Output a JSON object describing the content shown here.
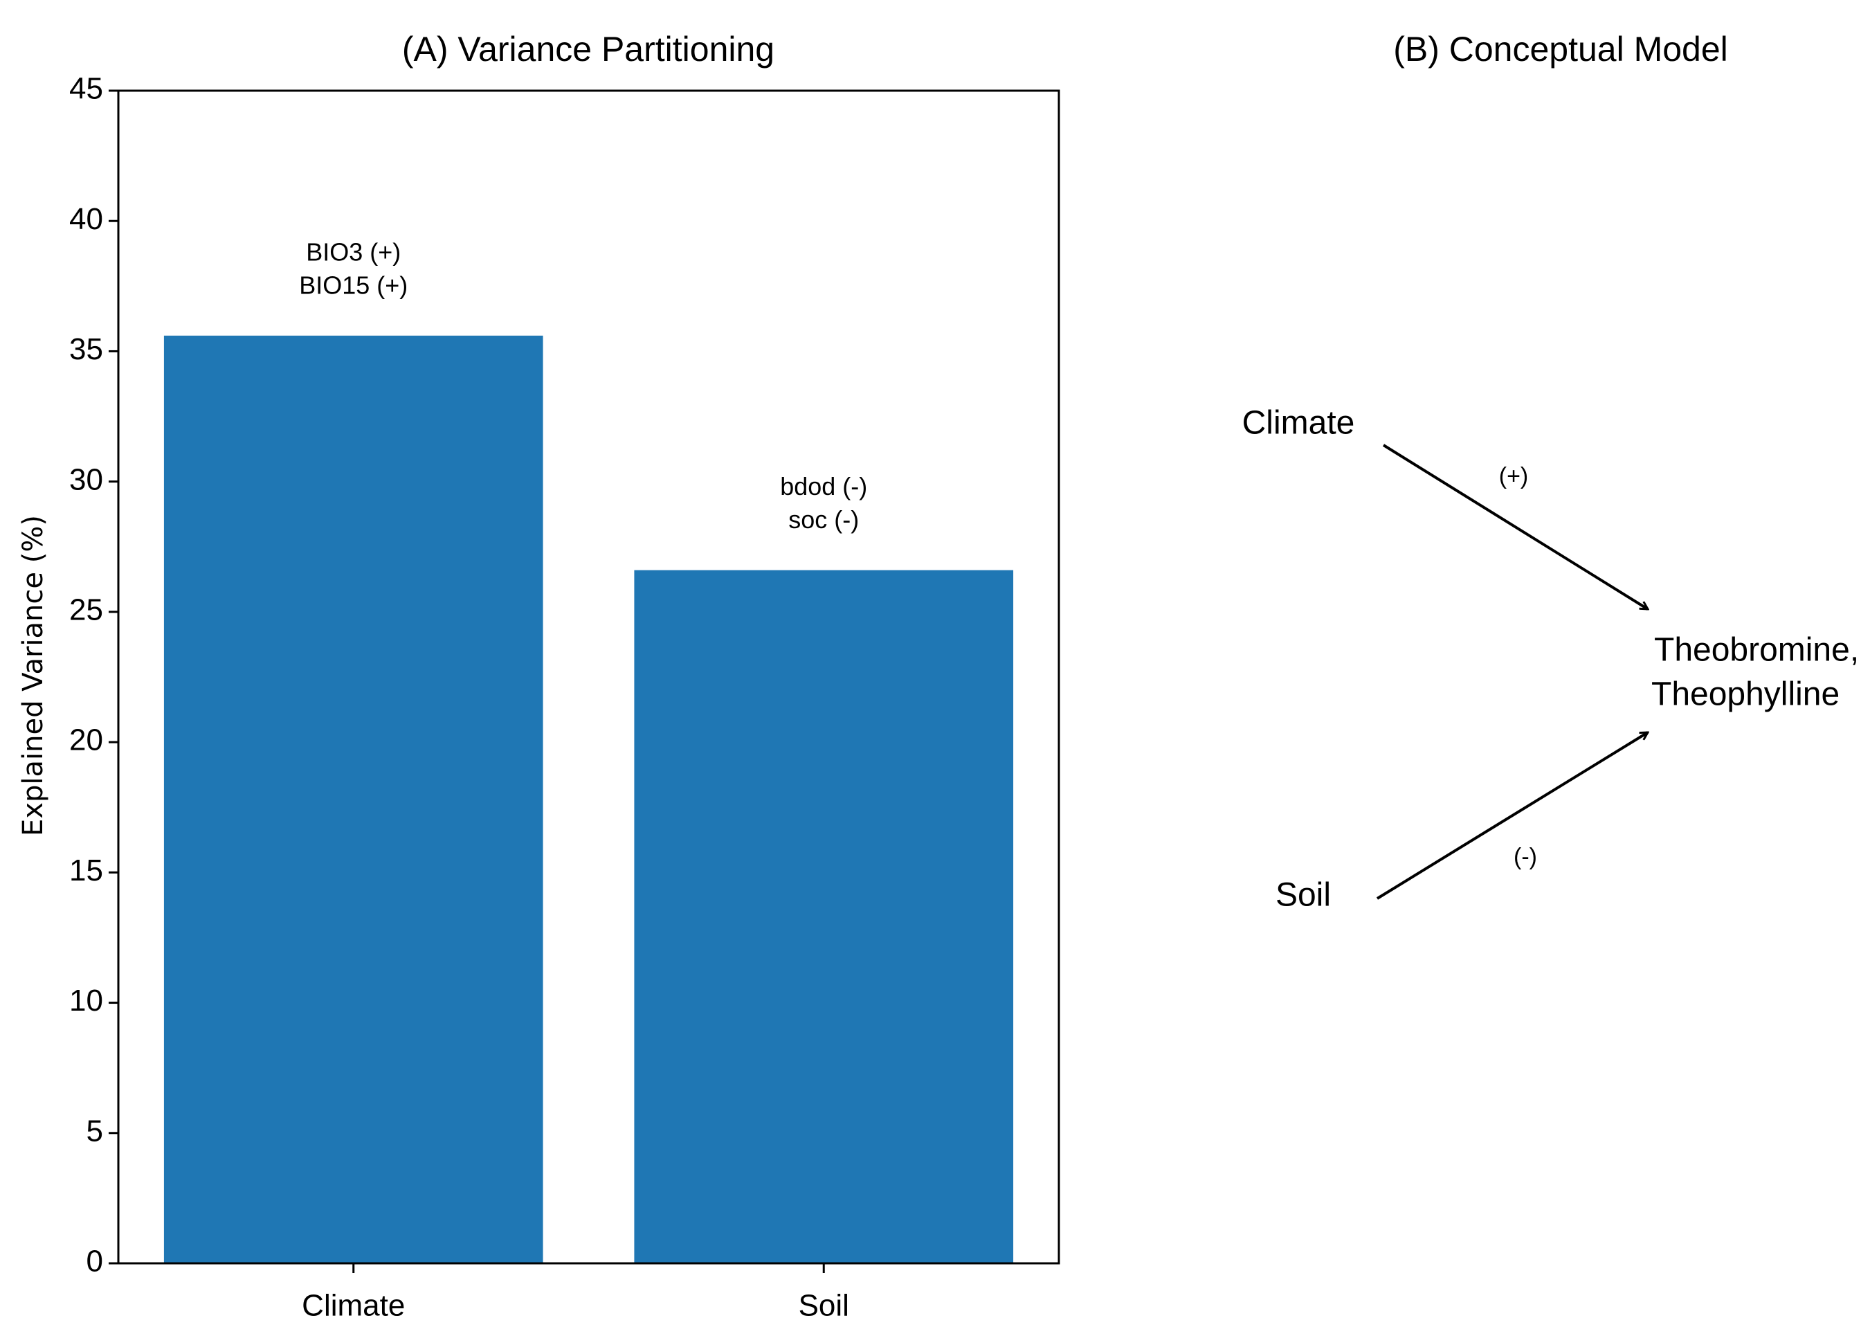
{
  "chart_data": {
    "type": "bar",
    "title": "(A) Variance Partitioning",
    "ylabel": "Explained Variance (%)",
    "categories": [
      "Climate",
      "Soil"
    ],
    "values": [
      35.6,
      26.6
    ],
    "color": "#1f77b4",
    "annotations": [
      [
        "BIO3 (+)",
        "BIO15 (+)"
      ],
      [
        "bdod (-)",
        "soc (-)"
      ]
    ],
    "ylim": [
      0,
      45
    ],
    "yticks": [
      0,
      5,
      10,
      15,
      20,
      25,
      30,
      35,
      40,
      45
    ],
    "grid": false
  },
  "diagram": {
    "title": "(B) Conceptual Model",
    "nodes": [
      {
        "label": "Climate"
      },
      {
        "label": "Soil"
      },
      {
        "label": [
          "Theobromine,",
          "Theophylline"
        ]
      }
    ],
    "edges": [
      {
        "label": "(+)"
      },
      {
        "label": "(-)"
      }
    ]
  }
}
